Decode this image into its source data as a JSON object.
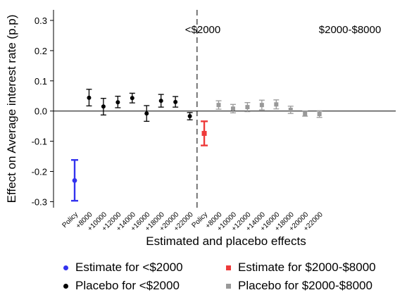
{
  "chart_data": {
    "type": "scatter",
    "title": "",
    "xlabel": "Estimated and placebo effects",
    "ylabel": "Effect on Average interest rate (p.p)",
    "ylim": [
      -0.32,
      0.335
    ],
    "yticks": [
      -0.3,
      -0.2,
      -0.1,
      0.0,
      0.1,
      0.2,
      0.3
    ],
    "ytick_labels": [
      "-0.3",
      "-0.2",
      "-0.1",
      "0.0",
      "0.1",
      "0.2",
      "0.3"
    ],
    "grid": false,
    "reference_line_y": 0,
    "divider_after_index": 8,
    "panel_labels": [
      "<$2000",
      "$2000-$8000"
    ],
    "categories": [
      "Policy",
      "+8000",
      "+10000",
      "+12000",
      "+14000",
      "+16000",
      "+18000",
      "+20000",
      "+22000",
      "Policy",
      "+8000",
      "+10000",
      "+12000",
      "+14000",
      "+16000",
      "+18000",
      "+20000",
      "+22000"
    ],
    "series": [
      {
        "name": "Estimate for <$2000",
        "color": "#3333ee",
        "marker": "circle",
        "points": [
          {
            "x": 0,
            "y": -0.23,
            "low": -0.297,
            "high": -0.162
          }
        ]
      },
      {
        "name": "Placebo for <$2000",
        "color": "#000000",
        "marker": "circle",
        "points": [
          {
            "x": 1,
            "y": 0.044,
            "low": 0.017,
            "high": 0.072
          },
          {
            "x": 2,
            "y": 0.015,
            "low": -0.013,
            "high": 0.042
          },
          {
            "x": 3,
            "y": 0.029,
            "low": 0.011,
            "high": 0.049
          },
          {
            "x": 4,
            "y": 0.043,
            "low": 0.027,
            "high": 0.059
          },
          {
            "x": 5,
            "y": -0.008,
            "low": -0.034,
            "high": 0.018
          },
          {
            "x": 6,
            "y": 0.034,
            "low": 0.013,
            "high": 0.055
          },
          {
            "x": 7,
            "y": 0.03,
            "low": 0.013,
            "high": 0.048
          },
          {
            "x": 8,
            "y": -0.017,
            "low": -0.029,
            "high": -0.005
          }
        ]
      },
      {
        "name": "Estimate for $2000-$8000",
        "color": "#ee3a3a",
        "marker": "square",
        "points": [
          {
            "x": 9,
            "y": -0.074,
            "low": -0.114,
            "high": -0.034
          }
        ]
      },
      {
        "name": "Placebo for $2000-$8000",
        "color": "#999999",
        "marker": "square",
        "points": [
          {
            "x": 10,
            "y": 0.02,
            "low": 0.006,
            "high": 0.034
          },
          {
            "x": 11,
            "y": 0.008,
            "low": -0.006,
            "high": 0.022
          },
          {
            "x": 12,
            "y": 0.013,
            "low": -0.002,
            "high": 0.028
          },
          {
            "x": 13,
            "y": 0.02,
            "low": 0.004,
            "high": 0.036
          },
          {
            "x": 14,
            "y": 0.022,
            "low": 0.007,
            "high": 0.037
          },
          {
            "x": 15,
            "y": 0.004,
            "low": -0.008,
            "high": 0.016
          },
          {
            "x": 16,
            "y": -0.009,
            "low": -0.017,
            "high": -0.001
          },
          {
            "x": 17,
            "y": -0.01,
            "low": -0.021,
            "high": 0.001
          }
        ]
      }
    ],
    "legend": {
      "placement": "bottom",
      "entries": [
        {
          "label": "Estimate for <$2000",
          "color": "#3333ee",
          "marker": "circle"
        },
        {
          "label": "Estimate for $2000-$8000",
          "color": "#ee3a3a",
          "marker": "square"
        },
        {
          "label": "Placebo for <$2000",
          "color": "#000000",
          "marker": "circle"
        },
        {
          "label": "Placebo for $2000-$8000",
          "color": "#999999",
          "marker": "square"
        }
      ]
    }
  }
}
